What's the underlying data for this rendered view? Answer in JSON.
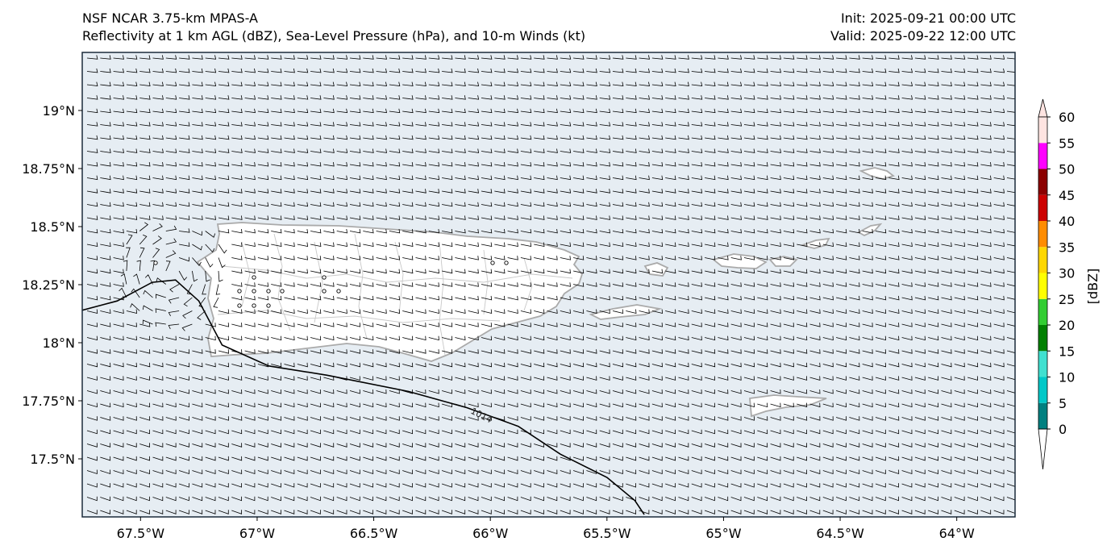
{
  "header": {
    "model": "NSF NCAR 3.75-km MPAS-A",
    "fields": "Reflectivity at 1 km AGL (dBZ), Sea-Level Pressure (hPa), and 10-m Winds (kt)",
    "init": "Init: 2025-09-21 00:00 UTC",
    "valid": "Valid: 2025-09-22 12:00 UTC"
  },
  "map": {
    "lon_range": [
      -67.75,
      -63.75
    ],
    "lat_range": [
      17.25,
      19.25
    ],
    "x_ticks": [
      "67.5°W",
      "67°W",
      "66.5°W",
      "66°W",
      "65.5°W",
      "65°W",
      "64.5°W",
      "64°W"
    ],
    "x_tick_values": [
      -67.5,
      -67.0,
      -66.5,
      -66.0,
      -65.5,
      -65.0,
      -64.5,
      -64.0
    ],
    "y_ticks": [
      "19°N",
      "18.75°N",
      "18.5°N",
      "18.25°N",
      "18°N",
      "17.75°N",
      "17.5°N"
    ],
    "y_tick_values": [
      19.0,
      18.75,
      18.5,
      18.25,
      18.0,
      17.75,
      17.5
    ],
    "isobar_label": "1014",
    "isobar": [
      [
        -67.75,
        18.14
      ],
      [
        -67.6,
        18.18
      ],
      [
        -67.45,
        18.26
      ],
      [
        -67.35,
        18.27
      ],
      [
        -67.25,
        18.18
      ],
      [
        -67.15,
        17.99
      ],
      [
        -66.95,
        17.9
      ],
      [
        -66.7,
        17.86
      ],
      [
        -66.35,
        17.79
      ],
      [
        -66.1,
        17.72
      ],
      [
        -65.88,
        17.64
      ],
      [
        -65.7,
        17.52
      ],
      [
        -65.5,
        17.42
      ],
      [
        -65.38,
        17.32
      ],
      [
        -65.34,
        17.26
      ]
    ],
    "coastline_color": "#aaaaaa",
    "land_color": "#ffffff",
    "ocean_color": "#e6edf3"
  },
  "colorbar": {
    "label": "[dBZ]",
    "ticks": [
      "0",
      "5",
      "10",
      "15",
      "20",
      "25",
      "30",
      "35",
      "40",
      "45",
      "50",
      "55",
      "60"
    ],
    "colors": [
      "#008080",
      "#00c8c8",
      "#40e0d0",
      "#008000",
      "#32cd32",
      "#ffff00",
      "#ffd700",
      "#ff8c00",
      "#cc0000",
      "#8b0000",
      "#ff00ff",
      "#ffe4e1"
    ],
    "under_color": "#ffffff"
  }
}
